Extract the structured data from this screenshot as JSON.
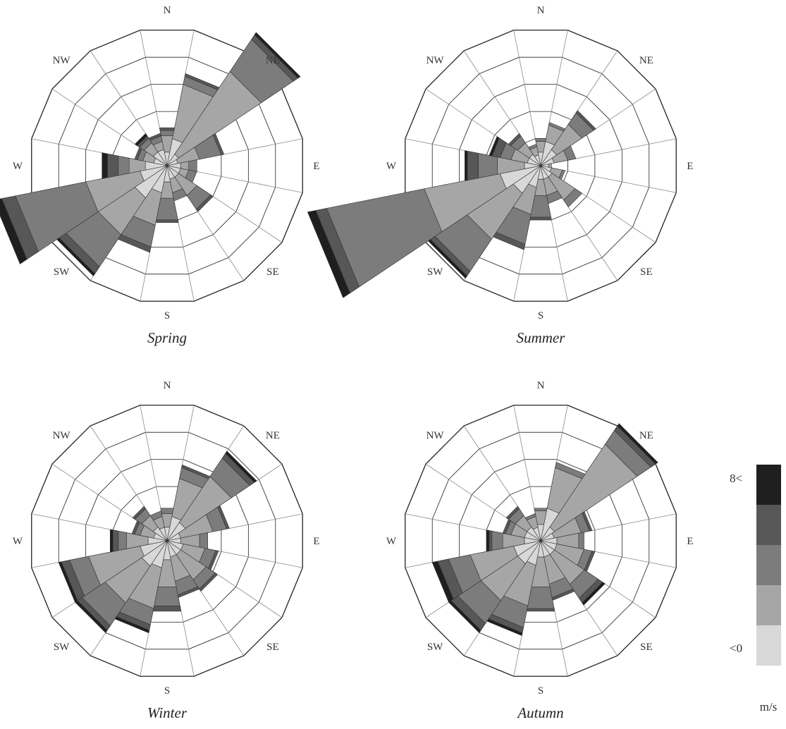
{
  "chart_data": [
    {
      "type": "wind-rose",
      "title": "Spring",
      "directions": [
        "N",
        "NNE",
        "NE",
        "ENE",
        "E",
        "ESE",
        "SE",
        "SSE",
        "S",
        "SSW",
        "SW",
        "WSW",
        "W",
        "WNW",
        "NW",
        "NNW"
      ],
      "direction_labels": [
        "N",
        "NE",
        "E",
        "SE",
        "S",
        "SW",
        "W",
        "NW"
      ],
      "bins": [
        [
          0.5,
          1.0,
          0.5,
          0.4,
          0.5,
          0.5,
          0.5,
          0.5,
          0.6,
          1.0,
          1.4,
          1.0,
          0.8,
          0.5,
          0.6,
          0.6
        ],
        [
          0.6,
          2.0,
          3.6,
          0.8,
          0.3,
          0.3,
          0.8,
          0.5,
          0.6,
          1.2,
          1.6,
          2.0,
          0.6,
          0.4,
          0.4,
          0.3
        ],
        [
          0.2,
          0.3,
          1.4,
          0.8,
          0.3,
          0.3,
          0.6,
          0.3,
          0.8,
          0.8,
          1.4,
          2.6,
          0.4,
          0.2,
          0.2,
          0.2
        ],
        [
          0.1,
          0.1,
          0.2,
          0.1,
          0.0,
          0.0,
          0.1,
          0.0,
          0.1,
          0.2,
          0.3,
          0.5,
          0.4,
          0.1,
          0.1,
          0.1
        ],
        [
          0.0,
          0.0,
          0.1,
          0.0,
          0.0,
          0.0,
          0.0,
          0.0,
          0.0,
          0.0,
          0.1,
          0.3,
          0.2,
          0.0,
          0.1,
          0.0
        ]
      ]
    },
    {
      "type": "wind-rose",
      "title": "Summer",
      "directions": [
        "N",
        "NNE",
        "NE",
        "ENE",
        "E",
        "ESE",
        "SE",
        "SSE",
        "S",
        "SSW",
        "SW",
        "WSW",
        "W",
        "WNW",
        "NW",
        "NNW"
      ],
      "direction_labels": [
        "N",
        "NE",
        "E",
        "SE",
        "S",
        "SW",
        "W",
        "NW"
      ],
      "bins": [
        [
          0.5,
          0.9,
          0.7,
          0.5,
          0.3,
          0.4,
          0.5,
          0.5,
          0.5,
          0.8,
          1.2,
          1.5,
          0.6,
          0.5,
          0.5,
          0.4
        ],
        [
          0.4,
          0.6,
          1.1,
          0.5,
          0.1,
          0.4,
          1.0,
          0.6,
          0.6,
          1.0,
          2.0,
          2.8,
          1.0,
          0.6,
          0.5,
          0.3
        ],
        [
          0.1,
          0.1,
          0.5,
          0.3,
          0.0,
          0.1,
          0.3,
          0.3,
          0.8,
          1.1,
          1.4,
          3.6,
          0.7,
          0.4,
          0.3,
          0.1
        ],
        [
          0.0,
          0.0,
          0.1,
          0.0,
          0.0,
          0.0,
          0.0,
          0.0,
          0.1,
          0.2,
          0.2,
          0.4,
          0.4,
          0.3,
          0.1,
          0.0
        ],
        [
          0.0,
          0.0,
          0.0,
          0.0,
          0.0,
          0.0,
          0.0,
          0.0,
          0.0,
          0.0,
          0.1,
          0.3,
          0.1,
          0.1,
          0.0,
          0.0
        ]
      ]
    },
    {
      "type": "wind-rose",
      "title": "Winter",
      "directions": [
        "N",
        "NNE",
        "NE",
        "ENE",
        "E",
        "ESE",
        "SE",
        "SSE",
        "S",
        "SSW",
        "SW",
        "WSW",
        "W",
        "WNW",
        "NW",
        "NNW"
      ],
      "direction_labels": [
        "N",
        "NE",
        "E",
        "SE",
        "S",
        "SW",
        "W",
        "NW"
      ],
      "bins": [
        [
          0.5,
          0.9,
          0.8,
          0.5,
          0.5,
          0.6,
          0.6,
          0.6,
          0.7,
          1.0,
          1.1,
          1.0,
          0.7,
          0.5,
          0.6,
          0.5
        ],
        [
          0.5,
          1.4,
          2.0,
          1.2,
          0.7,
          0.8,
          1.1,
          0.9,
          1.0,
          1.5,
          1.6,
          1.9,
          0.8,
          0.5,
          0.5,
          0.4
        ],
        [
          0.2,
          0.4,
          0.8,
          0.5,
          0.3,
          0.4,
          0.4,
          0.5,
          0.7,
          0.6,
          1.0,
          0.7,
          0.3,
          0.2,
          0.3,
          0.2
        ],
        [
          0.0,
          0.1,
          0.2,
          0.1,
          0.0,
          0.1,
          0.1,
          0.1,
          0.2,
          0.2,
          0.2,
          0.3,
          0.2,
          0.1,
          0.1,
          0.0
        ],
        [
          0.0,
          0.0,
          0.1,
          0.0,
          0.0,
          0.0,
          0.0,
          0.0,
          0.0,
          0.1,
          0.1,
          0.1,
          0.1,
          0.0,
          0.0,
          0.0
        ]
      ]
    },
    {
      "type": "wind-rose",
      "title": "Autumn",
      "directions": [
        "N",
        "NNE",
        "NE",
        "ENE",
        "E",
        "ESE",
        "SE",
        "SSE",
        "S",
        "SSW",
        "SW",
        "WSW",
        "W",
        "WNW",
        "NW",
        "NNW"
      ],
      "direction_labels": [
        "N",
        "NE",
        "E",
        "SE",
        "S",
        "SW",
        "W",
        "NW"
      ],
      "bins": [
        [
          0.6,
          1.2,
          0.6,
          0.5,
          0.6,
          0.6,
          0.6,
          0.6,
          0.6,
          0.9,
          1.0,
          1.0,
          0.6,
          0.6,
          0.6,
          0.5
        ],
        [
          0.5,
          1.5,
          3.6,
          1.0,
          0.8,
          1.0,
          1.3,
          1.0,
          1.1,
          1.5,
          1.6,
          1.6,
          0.8,
          0.5,
          0.5,
          0.4
        ],
        [
          0.1,
          0.2,
          0.6,
          0.3,
          0.2,
          0.3,
          0.6,
          0.5,
          0.8,
          0.8,
          1.0,
          0.8,
          0.4,
          0.2,
          0.3,
          0.1
        ],
        [
          0.0,
          0.0,
          0.2,
          0.1,
          0.0,
          0.1,
          0.2,
          0.1,
          0.1,
          0.2,
          0.3,
          0.4,
          0.1,
          0.1,
          0.1,
          0.0
        ],
        [
          0.0,
          0.0,
          0.1,
          0.0,
          0.0,
          0.0,
          0.1,
          0.0,
          0.0,
          0.1,
          0.1,
          0.2,
          0.1,
          0.0,
          0.0,
          0.0
        ]
      ]
    }
  ],
  "legend": {
    "top_label": "8<",
    "bottom_label": "<0",
    "unit": "m/s",
    "colors": [
      "#d8d8d8",
      "#a6a6a6",
      "#7c7c7c",
      "#575757",
      "#1f1f1f"
    ]
  },
  "grid": {
    "rings": 5,
    "sectors": 16,
    "ring_color": "#222222",
    "spoke_color": "#888888"
  }
}
